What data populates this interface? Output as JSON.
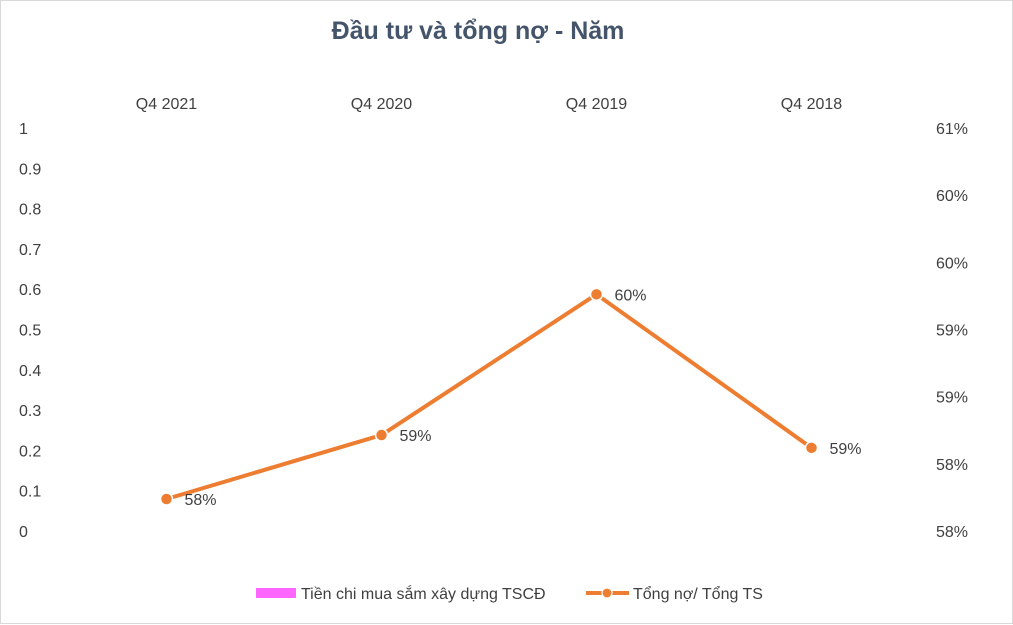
{
  "chart_data": {
    "type": "bar+line",
    "title": "Đầu tư và tổng nợ - Năm",
    "categories": [
      "Q4 2021",
      "Q4 2020",
      "Q4 2019",
      "Q4 2018"
    ],
    "x_axis_position": "top",
    "y_left": {
      "lim": [
        0,
        1
      ],
      "ticks": [
        "1",
        "0.9",
        "0.8",
        "0.7",
        "0.6",
        "0.5",
        "0.4",
        "0.3",
        "0.2",
        "0.1",
        "0"
      ]
    },
    "y_right": {
      "lim": [
        0.579,
        0.6105
      ],
      "ticks": [
        "61%",
        "60%",
        "60%",
        "59%",
        "59%",
        "58%",
        "58%"
      ]
    },
    "series": [
      {
        "name": "Tiền chi mua sắm xây dựng TSCĐ",
        "type": "bar",
        "axis": "left",
        "color": "#ff66ff",
        "values": [
          0,
          0,
          0,
          0
        ]
      },
      {
        "name": "Tổng nợ/ Tổng TS",
        "type": "line",
        "axis": "right",
        "color": "#ed7d31",
        "values": [
          0.5815,
          0.5865,
          0.5975,
          0.5855
        ],
        "labels": [
          "58%",
          "59%",
          "60%",
          "59%"
        ]
      }
    ],
    "grid": false,
    "legend": "bottom"
  }
}
